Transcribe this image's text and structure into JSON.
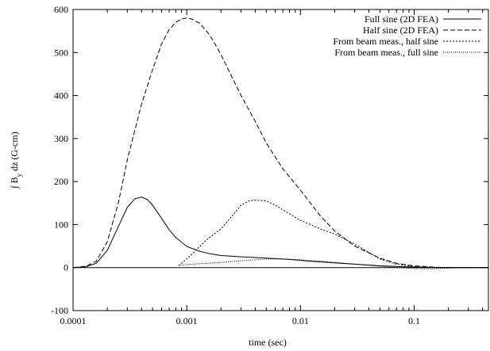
{
  "chart_data": {
    "type": "line",
    "title": "",
    "xlabel": "time (sec)",
    "ylabel_parts": [
      "∫ B",
      "y",
      " dz (G-cm)"
    ],
    "ylabel": "∫ B_y dz (G-cm)",
    "x_scale": "log",
    "xlim": [
      0.0001,
      0.45
    ],
    "ylim": [
      -100,
      600
    ],
    "x_ticks": [
      {
        "value": 0.0001,
        "label": "0.0001"
      },
      {
        "value": 0.001,
        "label": "0.001"
      },
      {
        "value": 0.01,
        "label": "0.01"
      },
      {
        "value": 0.1,
        "label": "0.1"
      }
    ],
    "y_ticks": [
      {
        "value": -100,
        "label": "-100"
      },
      {
        "value": 0,
        "label": "0"
      },
      {
        "value": 100,
        "label": "100"
      },
      {
        "value": 200,
        "label": "200"
      },
      {
        "value": 300,
        "label": "300"
      },
      {
        "value": 400,
        "label": "400"
      },
      {
        "value": 500,
        "label": "500"
      },
      {
        "value": 600,
        "label": "600"
      }
    ],
    "grid": false,
    "zero_line": true,
    "legend_position": "top-right",
    "series": [
      {
        "name": "Full sine (2D FEA)",
        "dash": "solid",
        "x": [
          0.0001,
          0.00013,
          0.00016,
          0.0002,
          0.00025,
          0.0003,
          0.00035,
          0.0004,
          0.00045,
          0.0005,
          0.0006,
          0.0007,
          0.0008,
          0.001,
          0.0013,
          0.0016,
          0.002,
          0.003,
          0.005,
          0.008,
          0.012,
          0.02,
          0.03,
          0.05,
          0.08,
          0.12,
          0.2,
          0.45
        ],
        "y": [
          0,
          2,
          10,
          40,
          95,
          140,
          160,
          164,
          158,
          145,
          115,
          88,
          70,
          49,
          38,
          32,
          28,
          25,
          22,
          19,
          15,
          11,
          8,
          4,
          2,
          1,
          0,
          0
        ]
      },
      {
        "name": "Half sine (2D FEA)",
        "dash": "6,3",
        "x": [
          0.0001,
          0.00013,
          0.00016,
          0.0002,
          0.00025,
          0.0003,
          0.0004,
          0.0005,
          0.0006,
          0.0007,
          0.0008,
          0.0009,
          0.001,
          0.0011,
          0.0013,
          0.0016,
          0.002,
          0.003,
          0.004,
          0.005,
          0.007,
          0.01,
          0.015,
          0.02,
          0.03,
          0.05,
          0.07,
          0.1,
          0.15,
          0.2,
          0.3,
          0.45
        ],
        "y": [
          0,
          3,
          15,
          60,
          150,
          250,
          380,
          460,
          520,
          553,
          570,
          578,
          580,
          578,
          568,
          540,
          495,
          400,
          340,
          290,
          230,
          180,
          120,
          85,
          50,
          22,
          10,
          4,
          1,
          0,
          0,
          0
        ]
      },
      {
        "name": "From beam meas., half sine",
        "dash": "2,2",
        "x": [
          0.00085,
          0.001,
          0.0012,
          0.0015,
          0.002,
          0.0025,
          0.003,
          0.0035,
          0.004,
          0.005,
          0.006,
          0.008,
          0.01,
          0.015,
          0.02,
          0.03,
          0.05,
          0.07,
          0.1,
          0.15,
          0.2,
          0.3,
          0.45
        ],
        "y": [
          5,
          20,
          40,
          65,
          90,
          120,
          145,
          155,
          157,
          155,
          145,
          125,
          110,
          90,
          78,
          55,
          20,
          8,
          2,
          0,
          0,
          0,
          0
        ]
      },
      {
        "name": "From beam meas., full sine",
        "dash": "1,1.5",
        "x": [
          0.00085,
          0.001,
          0.0015,
          0.002,
          0.003,
          0.004,
          0.005,
          0.007,
          0.01,
          0.015,
          0.02,
          0.03,
          0.05,
          0.07,
          0.1,
          0.15,
          0.2,
          0.3,
          0.45
        ],
        "y": [
          5,
          7,
          10,
          12,
          16,
          18,
          20,
          20,
          18,
          15,
          12,
          8,
          3,
          0,
          -2,
          -3,
          -1,
          0,
          0
        ]
      }
    ]
  }
}
